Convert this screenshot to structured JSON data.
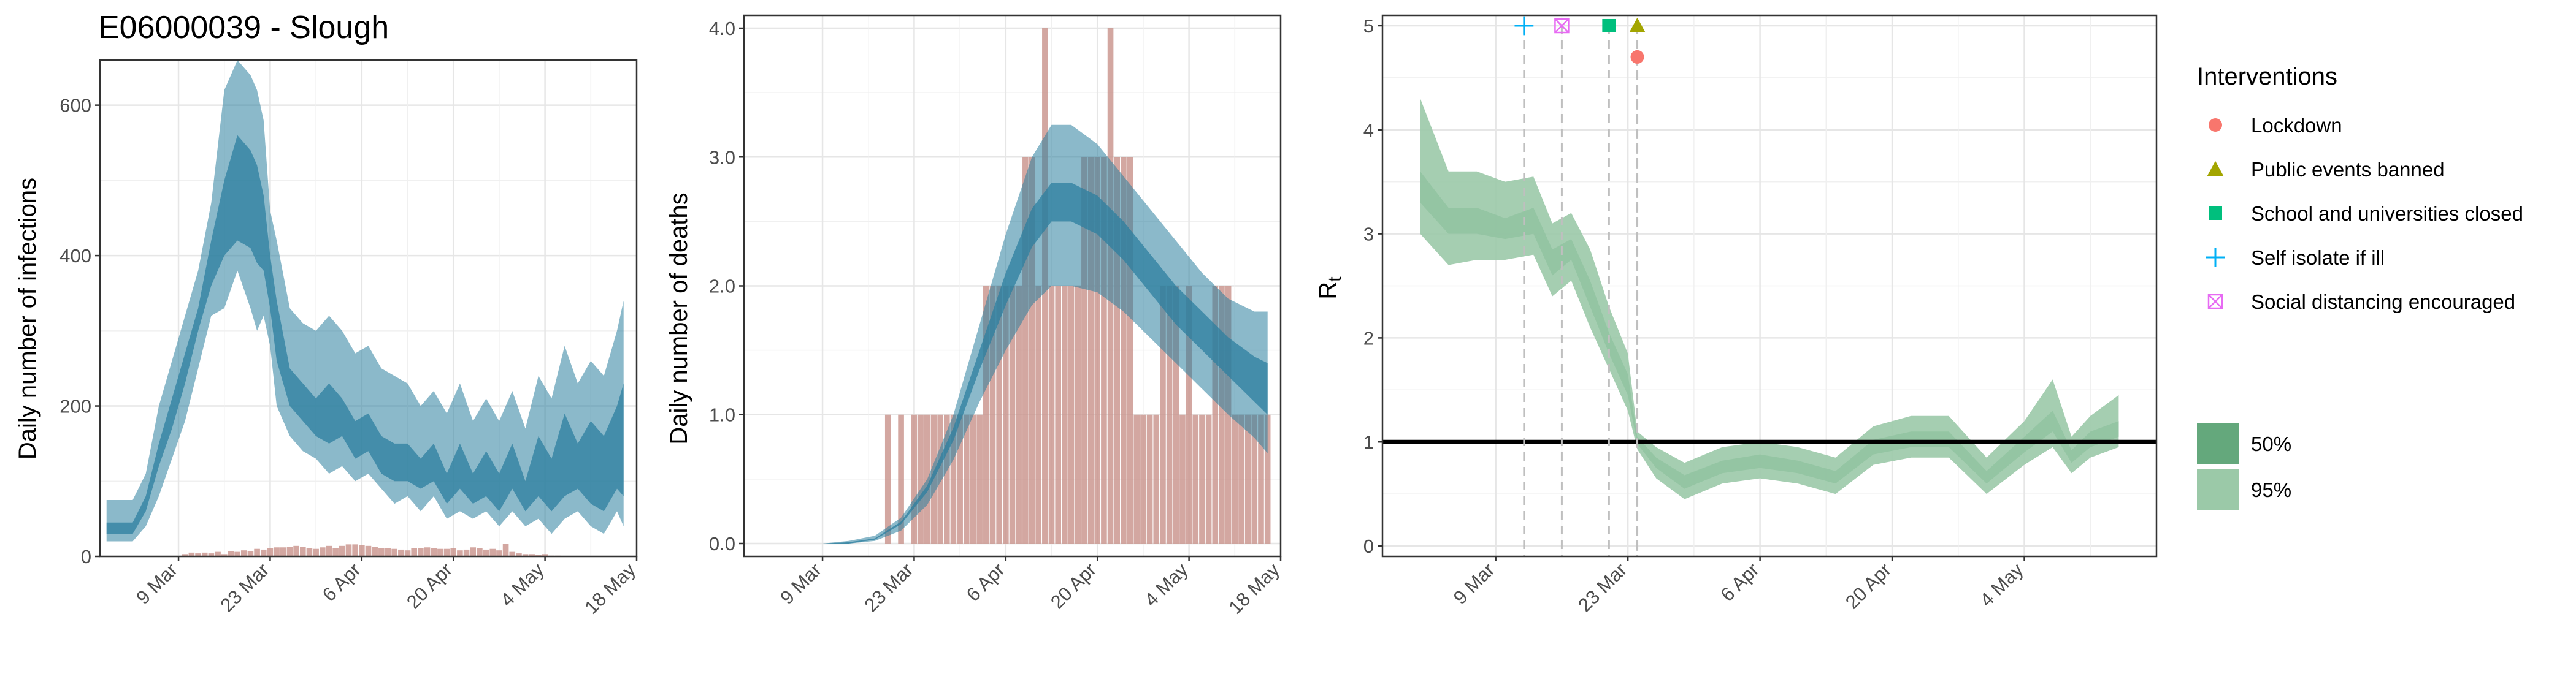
{
  "chart_data": [
    {
      "type": "area",
      "title": "E06000039 - Slough",
      "xlabel": "",
      "ylabel": "Daily number of infections",
      "xlim": [
        "2020-02-26",
        "2020-05-18"
      ],
      "ylim": [
        0,
        660
      ],
      "yticks": [
        0,
        200,
        400,
        600
      ],
      "xticks": [
        "9 Mar",
        "23 Mar",
        "6 Apr",
        "20 Apr",
        "4 May",
        "18 May"
      ],
      "grid": true,
      "bars": {
        "start": "2020-03-09",
        "values": [
          0,
          3,
          5,
          4,
          5,
          4,
          6,
          3,
          7,
          6,
          8,
          7,
          10,
          9,
          11,
          12,
          12,
          13,
          14,
          13,
          11,
          10,
          12,
          14,
          11,
          14,
          16,
          16,
          15,
          14,
          13,
          11,
          11,
          10,
          9,
          8,
          11,
          11,
          12,
          11,
          10,
          10,
          11,
          8,
          9,
          12,
          11,
          9,
          10,
          8,
          17,
          6,
          4,
          3,
          3,
          2,
          3,
          1,
          1,
          0,
          0
        ]
      },
      "series": [
        {
          "name": "95%",
          "x": [
            "2020-02-27",
            "2020-03-02",
            "2020-03-04",
            "2020-03-06",
            "2020-03-08",
            "2020-03-10",
            "2020-03-12",
            "2020-03-14",
            "2020-03-16",
            "2020-03-18",
            "2020-03-20",
            "2020-03-21",
            "2020-03-22",
            "2020-03-23",
            "2020-03-24",
            "2020-03-26",
            "2020-03-28",
            "2020-03-30",
            "2020-04-01",
            "2020-04-03",
            "2020-04-05",
            "2020-04-07",
            "2020-04-09",
            "2020-04-11",
            "2020-04-13",
            "2020-04-15",
            "2020-04-17",
            "2020-04-19",
            "2020-04-21",
            "2020-04-23",
            "2020-04-25",
            "2020-04-27",
            "2020-04-29",
            "2020-05-01",
            "2020-05-03",
            "2020-05-05",
            "2020-05-07",
            "2020-05-09",
            "2020-05-11",
            "2020-05-13",
            "2020-05-15",
            "2020-05-16"
          ],
          "lower": [
            20,
            20,
            40,
            80,
            130,
            180,
            250,
            320,
            330,
            380,
            330,
            300,
            320,
            280,
            200,
            160,
            140,
            130,
            110,
            120,
            100,
            110,
            90,
            70,
            80,
            60,
            80,
            50,
            60,
            50,
            60,
            40,
            60,
            40,
            50,
            30,
            50,
            60,
            40,
            30,
            60,
            40
          ],
          "upper": [
            75,
            75,
            110,
            200,
            260,
            320,
            380,
            470,
            620,
            660,
            640,
            620,
            580,
            460,
            420,
            330,
            310,
            300,
            320,
            300,
            270,
            280,
            250,
            240,
            230,
            200,
            220,
            190,
            230,
            180,
            210,
            180,
            220,
            170,
            240,
            210,
            280,
            230,
            260,
            240,
            300,
            340
          ]
        },
        {
          "name": "50%",
          "x": [
            "2020-02-27",
            "2020-03-02",
            "2020-03-04",
            "2020-03-06",
            "2020-03-08",
            "2020-03-10",
            "2020-03-12",
            "2020-03-14",
            "2020-03-16",
            "2020-03-18",
            "2020-03-20",
            "2020-03-21",
            "2020-03-22",
            "2020-03-23",
            "2020-03-24",
            "2020-03-26",
            "2020-03-28",
            "2020-03-30",
            "2020-04-01",
            "2020-04-03",
            "2020-04-05",
            "2020-04-07",
            "2020-04-09",
            "2020-04-11",
            "2020-04-13",
            "2020-04-15",
            "2020-04-17",
            "2020-04-19",
            "2020-04-21",
            "2020-04-23",
            "2020-04-25",
            "2020-04-27",
            "2020-04-29",
            "2020-05-01",
            "2020-05-03",
            "2020-05-05",
            "2020-05-07",
            "2020-05-09",
            "2020-05-11",
            "2020-05-13",
            "2020-05-15",
            "2020-05-16"
          ],
          "lower": [
            30,
            30,
            60,
            120,
            170,
            230,
            300,
            360,
            400,
            420,
            410,
            390,
            380,
            330,
            260,
            200,
            180,
            160,
            150,
            160,
            130,
            140,
            110,
            100,
            100,
            90,
            100,
            70,
            90,
            70,
            80,
            60,
            90,
            60,
            80,
            60,
            80,
            90,
            70,
            60,
            90,
            80
          ],
          "upper": [
            45,
            45,
            80,
            150,
            210,
            270,
            330,
            420,
            500,
            560,
            540,
            520,
            480,
            400,
            340,
            250,
            230,
            210,
            230,
            210,
            180,
            190,
            160,
            150,
            150,
            130,
            150,
            110,
            150,
            110,
            140,
            110,
            150,
            100,
            160,
            130,
            190,
            150,
            180,
            160,
            200,
            230
          ]
        }
      ]
    },
    {
      "type": "area",
      "title": "",
      "xlabel": "",
      "ylabel": "Daily number of deaths",
      "xlim": [
        "2020-02-26",
        "2020-05-18"
      ],
      "ylim": [
        -0.1,
        4.1
      ],
      "yticks": [
        "0.0",
        "1.0",
        "2.0",
        "3.0",
        "4.0"
      ],
      "xticks": [
        "9 Mar",
        "23 Mar",
        "6 Apr",
        "20 Apr",
        "4 May",
        "18 May"
      ],
      "grid": true,
      "bars": {
        "start": "2020-03-19",
        "values": [
          1,
          0,
          1,
          0,
          1,
          1,
          1,
          1,
          1,
          1,
          1,
          1,
          1,
          1,
          1,
          2,
          2,
          2,
          2,
          2,
          2,
          3,
          3,
          2,
          4,
          2,
          2,
          2,
          2,
          2,
          3,
          3,
          3,
          3,
          4,
          3,
          3,
          3,
          1,
          1,
          1,
          1,
          2,
          2,
          2,
          1,
          2,
          1,
          1,
          1,
          2,
          2,
          2,
          1,
          1,
          1,
          1,
          1,
          1
        ]
      },
      "series": [
        {
          "name": "95%",
          "x": [
            "2020-03-01",
            "2020-03-05",
            "2020-03-09",
            "2020-03-13",
            "2020-03-17",
            "2020-03-21",
            "2020-03-25",
            "2020-03-29",
            "2020-04-02",
            "2020-04-06",
            "2020-04-10",
            "2020-04-13",
            "2020-04-16",
            "2020-04-20",
            "2020-04-24",
            "2020-04-28",
            "2020-05-02",
            "2020-05-06",
            "2020-05-10",
            "2020-05-14",
            "2020-05-16"
          ],
          "lower": [
            0,
            0,
            0,
            0,
            0.02,
            0.1,
            0.3,
            0.65,
            1.1,
            1.5,
            1.85,
            2.0,
            2.0,
            1.95,
            1.8,
            1.6,
            1.4,
            1.2,
            1.0,
            0.82,
            0.7
          ],
          "upper": [
            0,
            0,
            0,
            0.02,
            0.06,
            0.2,
            0.5,
            1.0,
            1.7,
            2.4,
            3.0,
            3.25,
            3.25,
            3.1,
            2.85,
            2.6,
            2.35,
            2.1,
            1.9,
            1.8,
            1.8
          ]
        },
        {
          "name": "50%",
          "x": [
            "2020-03-01",
            "2020-03-05",
            "2020-03-09",
            "2020-03-13",
            "2020-03-17",
            "2020-03-21",
            "2020-03-25",
            "2020-03-29",
            "2020-04-02",
            "2020-04-06",
            "2020-04-10",
            "2020-04-13",
            "2020-04-16",
            "2020-04-20",
            "2020-04-24",
            "2020-04-28",
            "2020-05-02",
            "2020-05-06",
            "2020-05-10",
            "2020-05-14",
            "2020-05-16"
          ],
          "lower": [
            0,
            0,
            0,
            0,
            0.03,
            0.15,
            0.4,
            0.8,
            1.35,
            1.85,
            2.3,
            2.5,
            2.5,
            2.4,
            2.2,
            1.95,
            1.7,
            1.5,
            1.3,
            1.1,
            1.0
          ],
          "upper": [
            0,
            0,
            0,
            0.01,
            0.04,
            0.17,
            0.45,
            0.9,
            1.5,
            2.1,
            2.6,
            2.8,
            2.8,
            2.7,
            2.5,
            2.25,
            2.0,
            1.8,
            1.6,
            1.45,
            1.4
          ]
        }
      ]
    },
    {
      "type": "area",
      "title": "",
      "xlabel": "",
      "ylabel": "Rt",
      "ylabel_main": "R",
      "ylabel_sub": "t",
      "xlim": [
        "2020-02-26",
        "2020-05-18"
      ],
      "ylim": [
        -0.1,
        5.1
      ],
      "yticks": [
        "0",
        "1",
        "2",
        "3",
        "4",
        "5"
      ],
      "xticks": [
        "9 Mar",
        "23 Mar",
        "6 Apr",
        "20 Apr",
        "4 May"
      ],
      "grid": true,
      "reference_line": 1,
      "series": [
        {
          "name": "50%",
          "x": [
            "2020-03-01",
            "2020-03-04",
            "2020-03-07",
            "2020-03-10",
            "2020-03-13",
            "2020-03-15",
            "2020-03-17",
            "2020-03-19",
            "2020-03-21",
            "2020-03-23",
            "2020-03-24",
            "2020-03-26",
            "2020-03-29",
            "2020-04-02",
            "2020-04-06",
            "2020-04-10",
            "2020-04-14",
            "2020-04-18",
            "2020-04-22",
            "2020-04-26",
            "2020-04-30",
            "2020-05-04",
            "2020-05-07",
            "2020-05-09",
            "2020-05-11",
            "2020-05-14"
          ],
          "lower": [
            3.3,
            3.0,
            3.0,
            2.95,
            3.0,
            2.6,
            2.75,
            2.3,
            1.85,
            1.45,
            0.98,
            0.75,
            0.55,
            0.7,
            0.75,
            0.7,
            0.6,
            0.88,
            0.95,
            0.95,
            0.6,
            0.9,
            1.1,
            0.8,
            0.95,
            1.05
          ],
          "upper": [
            3.6,
            3.25,
            3.25,
            3.15,
            3.25,
            2.85,
            2.95,
            2.55,
            2.05,
            1.65,
            1.05,
            0.85,
            0.68,
            0.82,
            0.88,
            0.82,
            0.72,
            1.02,
            1.1,
            1.1,
            0.72,
            1.05,
            1.3,
            0.92,
            1.1,
            1.2
          ]
        },
        {
          "name": "95%",
          "x": [
            "2020-03-01",
            "2020-03-04",
            "2020-03-07",
            "2020-03-10",
            "2020-03-13",
            "2020-03-15",
            "2020-03-17",
            "2020-03-19",
            "2020-03-21",
            "2020-03-23",
            "2020-03-24",
            "2020-03-26",
            "2020-03-29",
            "2020-04-02",
            "2020-04-06",
            "2020-04-10",
            "2020-04-14",
            "2020-04-18",
            "2020-04-22",
            "2020-04-26",
            "2020-04-30",
            "2020-05-04",
            "2020-05-07",
            "2020-05-09",
            "2020-05-11",
            "2020-05-14"
          ],
          "lower": [
            3.0,
            2.7,
            2.75,
            2.75,
            2.8,
            2.4,
            2.55,
            2.1,
            1.7,
            1.3,
            0.93,
            0.65,
            0.45,
            0.6,
            0.65,
            0.6,
            0.5,
            0.78,
            0.85,
            0.85,
            0.5,
            0.78,
            0.95,
            0.7,
            0.85,
            0.95
          ],
          "upper": [
            4.3,
            3.6,
            3.6,
            3.5,
            3.55,
            3.1,
            3.2,
            2.85,
            2.3,
            1.85,
            1.1,
            0.95,
            0.8,
            0.95,
            1.0,
            0.95,
            0.85,
            1.15,
            1.25,
            1.25,
            0.85,
            1.2,
            1.6,
            1.05,
            1.25,
            1.45
          ]
        }
      ],
      "interventions": [
        {
          "name": "Self isolate if ill",
          "date": "2020-03-12",
          "r": 5.0,
          "shape": "plus",
          "color": "#00B0F6"
        },
        {
          "name": "Social distancing encouraged",
          "date": "2020-03-16",
          "r": 5.0,
          "shape": "boxcross",
          "color": "#E76BF3"
        },
        {
          "name": "School and universities closed",
          "date": "2020-03-21",
          "r": 5.0,
          "shape": "square",
          "color": "#00BF7D"
        },
        {
          "name": "Public events banned",
          "date": "2020-03-24",
          "r": 5.0,
          "shape": "triangle",
          "color": "#A3A500"
        },
        {
          "name": "Lockdown",
          "date": "2020-03-24",
          "r": 4.7,
          "shape": "circle",
          "color": "#F8766D"
        }
      ]
    }
  ],
  "legend": {
    "interventions_title": "Interventions",
    "interventions": [
      {
        "label": "Lockdown",
        "shape": "circle",
        "color": "#F8766D"
      },
      {
        "label": "Public events banned",
        "shape": "triangle",
        "color": "#A3A500"
      },
      {
        "label": "School and universities closed",
        "shape": "square",
        "color": "#00BF7D"
      },
      {
        "label": "Self isolate if ill",
        "shape": "plus",
        "color": "#00B0F6"
      },
      {
        "label": "Social distancing encouraged",
        "shape": "boxcross",
        "color": "#E76BF3"
      }
    ],
    "bands": [
      {
        "label": "50%",
        "color": "#64A87C"
      },
      {
        "label": "95%",
        "color": "#9BC9A8"
      }
    ]
  },
  "colors": {
    "infection_band": "#2C7F9F",
    "death_band": "#2C7F9F",
    "bar_fill": "#C89189",
    "rt_50": "#41945F",
    "rt_95": "#9BC9A8"
  }
}
